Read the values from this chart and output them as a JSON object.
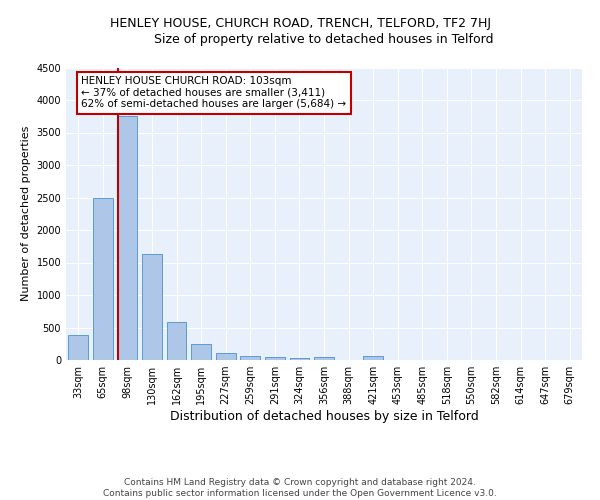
{
  "title": "HENLEY HOUSE, CHURCH ROAD, TRENCH, TELFORD, TF2 7HJ",
  "subtitle": "Size of property relative to detached houses in Telford",
  "xlabel": "Distribution of detached houses by size in Telford",
  "ylabel": "Number of detached properties",
  "categories": [
    "33sqm",
    "65sqm",
    "98sqm",
    "130sqm",
    "162sqm",
    "195sqm",
    "227sqm",
    "259sqm",
    "291sqm",
    "324sqm",
    "356sqm",
    "388sqm",
    "421sqm",
    "453sqm",
    "485sqm",
    "518sqm",
    "550sqm",
    "582sqm",
    "614sqm",
    "647sqm",
    "679sqm"
  ],
  "values": [
    380,
    2500,
    3750,
    1630,
    580,
    240,
    105,
    60,
    45,
    30,
    45,
    0,
    60,
    0,
    0,
    0,
    0,
    0,
    0,
    0,
    0
  ],
  "bar_color": "#aec6e8",
  "bar_edgecolor": "#5b9bd5",
  "red_line_x": "98sqm",
  "annotation_title": "HENLEY HOUSE CHURCH ROAD: 103sqm",
  "annotation_line1": "← 37% of detached houses are smaller (3,411)",
  "annotation_line2": "62% of semi-detached houses are larger (5,684) →",
  "annotation_box_edgecolor": "#c00000",
  "ylim": [
    0,
    4500
  ],
  "yticks": [
    0,
    500,
    1000,
    1500,
    2000,
    2500,
    3000,
    3500,
    4000,
    4500
  ],
  "plot_background": "#e8f0fb",
  "footer": "Contains HM Land Registry data © Crown copyright and database right 2024.\nContains public sector information licensed under the Open Government Licence v3.0.",
  "title_fontsize": 9,
  "subtitle_fontsize": 9,
  "xlabel_fontsize": 9,
  "ylabel_fontsize": 8,
  "tick_fontsize": 7,
  "footer_fontsize": 6.5,
  "ann_fontsize": 7.5
}
